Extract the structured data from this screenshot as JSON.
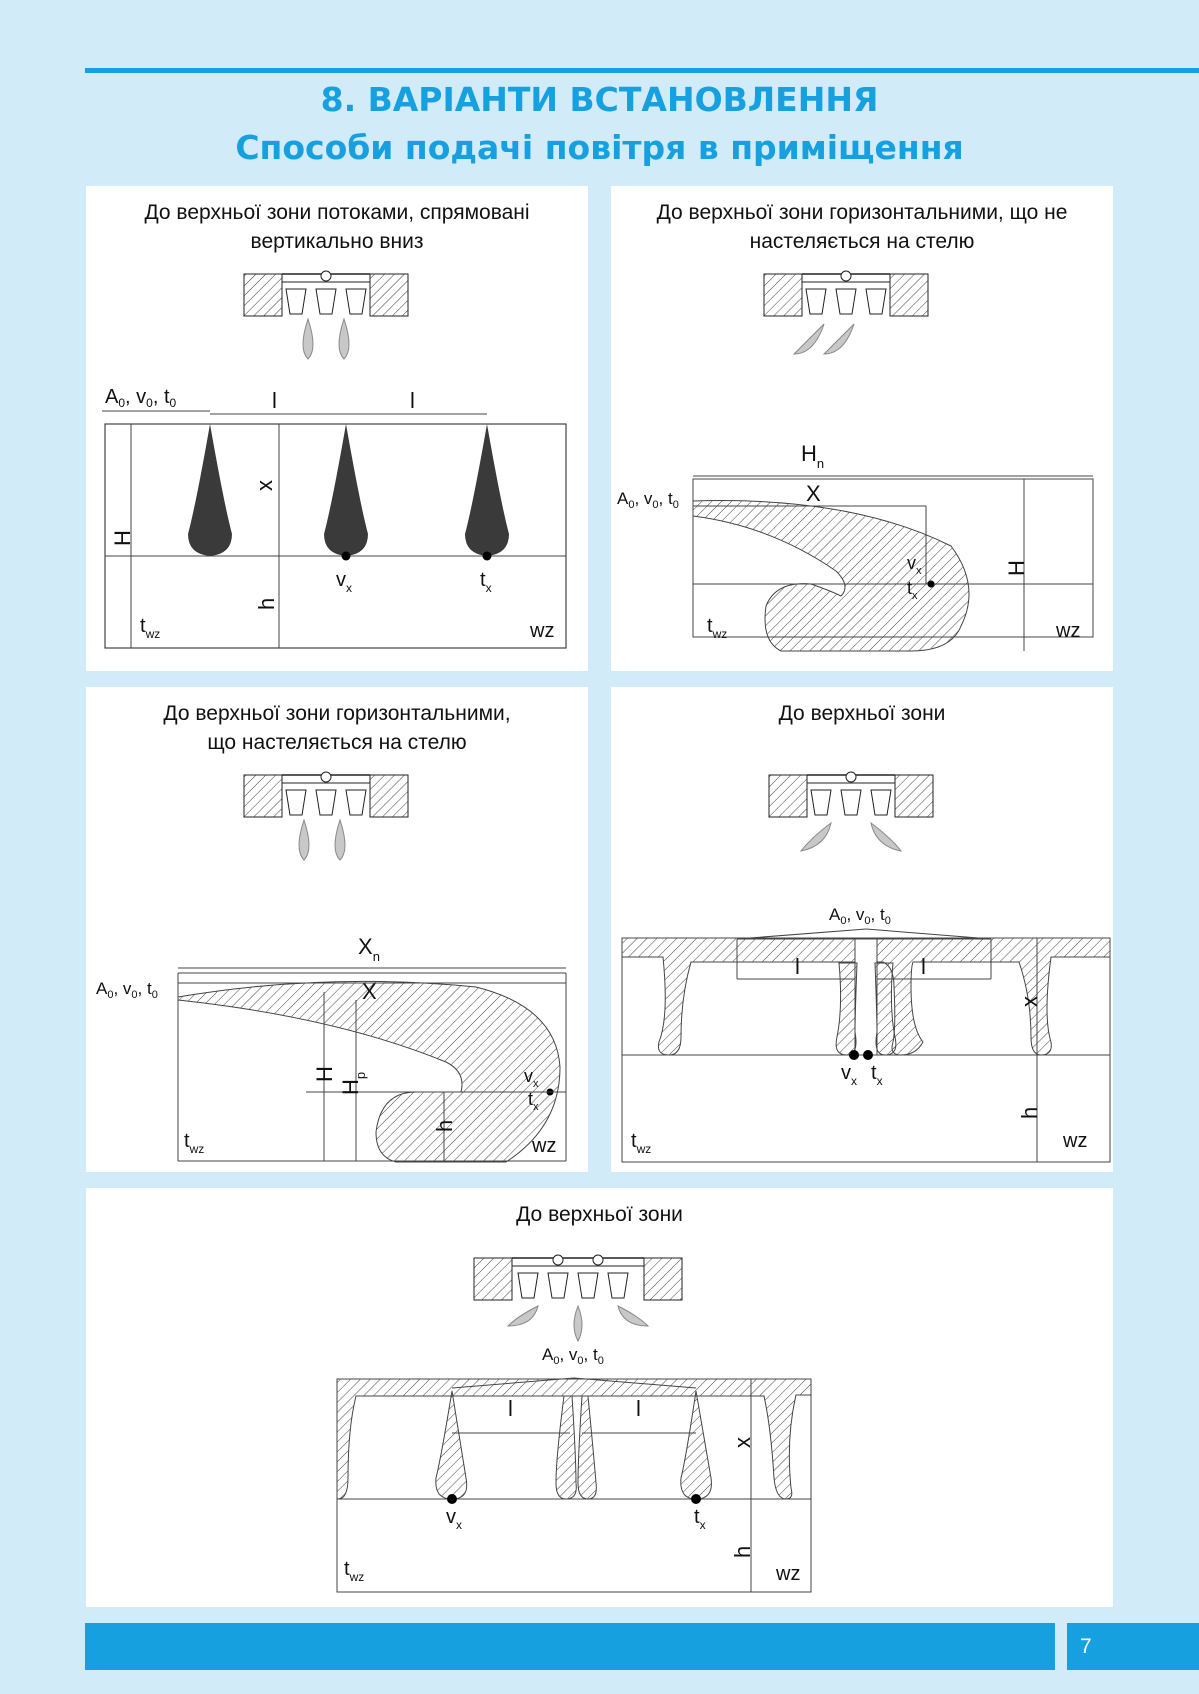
{
  "header": {
    "title": "8. ВАРІАНТИ ВСТАНОВЛЕННЯ",
    "subtitle": "Способи подачі повітря в приміщення"
  },
  "panels": [
    {
      "caption_line1": "До верхньої зони потоками, спрямовані",
      "caption_line2": "вертикально вниз"
    },
    {
      "caption_line1": "До верхньої зони горизонтальними, що не",
      "caption_line2": "настеляється на стелю"
    },
    {
      "caption_line1": "До верхньої зони горизонтальними,",
      "caption_line2": "що настеляється на стелю"
    },
    {
      "caption_line1": "До верхньої зони",
      "caption_line2": ""
    },
    {
      "caption_line1": "До верхньої зони",
      "caption_line2": ""
    }
  ],
  "labels": {
    "A0": "A",
    "v0": "v",
    "t0": "t",
    "sub0": "0",
    "l": "l",
    "x": "x",
    "X": "X",
    "H": "H",
    "h": "h",
    "Hn": "H",
    "Xn": "X",
    "Hp": "H",
    "sub_n": "n",
    "sub_p": "p",
    "vx": "v",
    "tx": "t",
    "sub_x": "x",
    "twz": "t",
    "sub_wz": "wz",
    "wz": "wz"
  },
  "footer": {
    "page_number": "7"
  },
  "colors": {
    "accent": "#16a0df",
    "background": "#d2ebf9",
    "jet_dark": "#3a3a3a",
    "jet_light": "#c8c8c8"
  }
}
